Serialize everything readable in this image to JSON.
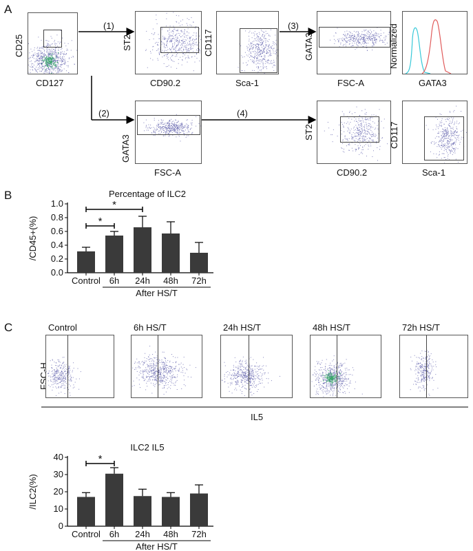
{
  "panel_a": {
    "letter": "A",
    "plot1": {
      "ylabel": "CD25",
      "xlabel": "CD127"
    },
    "steps": [
      "(1)",
      "(2)",
      "(3)",
      "(4)"
    ],
    "top_row": [
      {
        "ylabel": "ST2",
        "xlabel": "CD90.2"
      },
      {
        "ylabel": "CD117",
        "xlabel": "Sca-1"
      },
      {
        "ylabel": "GATA3",
        "xlabel": "FSC-A"
      },
      {
        "ylabel": "Normalized",
        "xlabel": "GATA3"
      }
    ],
    "bottom_row": [
      {
        "ylabel": "GATA3",
        "xlabel": "FSC-A"
      },
      {
        "ylabel": "ST2",
        "xlabel": "CD90.2"
      },
      {
        "ylabel": "CD117",
        "xlabel": "Sca-1"
      }
    ],
    "colors": {
      "dots": "#5a5aa8",
      "dense_core": "#3aa86a",
      "histogram_cyan": "#35c8d8",
      "histogram_red": "#e05a5a"
    }
  },
  "panel_b": {
    "letter": "B",
    "chart_data": {
      "type": "bar",
      "title": "Percentage of ILC2",
      "ylabel": "/CD45+(%)",
      "categories": [
        "Control",
        "6h",
        "24h",
        "48h",
        "72h"
      ],
      "values": [
        0.31,
        0.54,
        0.66,
        0.57,
        0.29
      ],
      "errors": [
        0.06,
        0.06,
        0.16,
        0.17,
        0.15
      ],
      "ylim": [
        0,
        1.0
      ],
      "yticks": [
        "0.0",
        "0.2",
        "0.4",
        "0.6",
        "0.8",
        "1.0"
      ],
      "group_label": "After HS/T",
      "significance": [
        {
          "from": "Control",
          "to": "6h",
          "label": "*"
        },
        {
          "from": "Control",
          "to": "24h",
          "label": "*"
        }
      ],
      "bar_color": "#3a3a3a"
    }
  },
  "panel_c": {
    "letter": "C",
    "ylabel": "FSC-H",
    "xlabel": "IL5",
    "plots": [
      {
        "title": "Control"
      },
      {
        "title": "6h HS/T"
      },
      {
        "title": "24h HS/T"
      },
      {
        "title": "48h HS/T"
      },
      {
        "title": "72h HS/T"
      }
    ],
    "chart_data": {
      "type": "bar",
      "title": "ILC2 IL5",
      "ylabel": "/ILC2(%)",
      "categories": [
        "Control",
        "6h",
        "24h",
        "48h",
        "72h"
      ],
      "values": [
        17,
        30.5,
        17.5,
        17,
        19
      ],
      "errors": [
        2.5,
        3.5,
        4,
        2.5,
        5
      ],
      "ylim": [
        0,
        40
      ],
      "yticks": [
        "0",
        "10",
        "20",
        "30",
        "40"
      ],
      "group_label": "After HS/T",
      "significance": [
        {
          "from": "Control",
          "to": "6h",
          "label": "*"
        }
      ],
      "bar_color": "#3a3a3a"
    }
  }
}
